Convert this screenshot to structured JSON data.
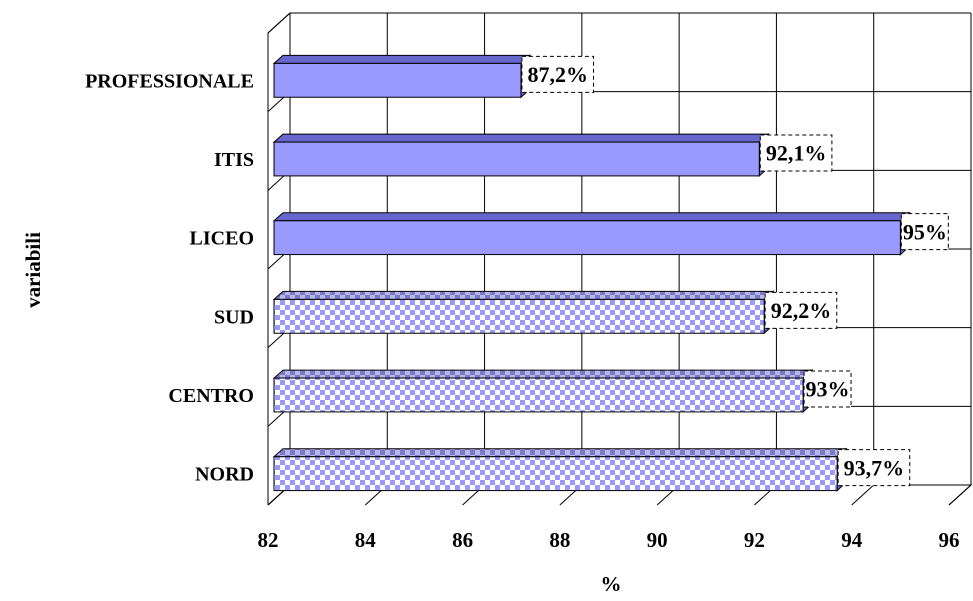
{
  "chart_data": {
    "type": "bar",
    "orientation": "horizontal",
    "three_d": true,
    "title": "",
    "xlabel": "%",
    "ylabel": "variabili",
    "xlim": [
      82,
      96
    ],
    "x_ticks": [
      "82",
      "84",
      "86",
      "88",
      "90",
      "92",
      "94",
      "96"
    ],
    "grid": true,
    "categories": [
      "PROFESSIONALE",
      "ITIS",
      "LICEO",
      "SUD",
      "CENTRO",
      "NORD"
    ],
    "values": [
      87.2,
      92.1,
      95,
      92.2,
      93,
      93.7
    ],
    "value_labels": [
      "87,2%",
      "92,1%",
      "95%",
      "92,2%",
      "93%",
      "93,7%"
    ],
    "bar_styles": [
      "solid",
      "solid",
      "solid",
      "checkered",
      "checkered",
      "checkered"
    ],
    "colors": {
      "solid_fill": "#9999ff",
      "solid_top": "#6666cc",
      "check_a": "#9999ff",
      "check_b": "#ffffff",
      "check_top": "#7a7acc",
      "grid": "#000000"
    }
  }
}
